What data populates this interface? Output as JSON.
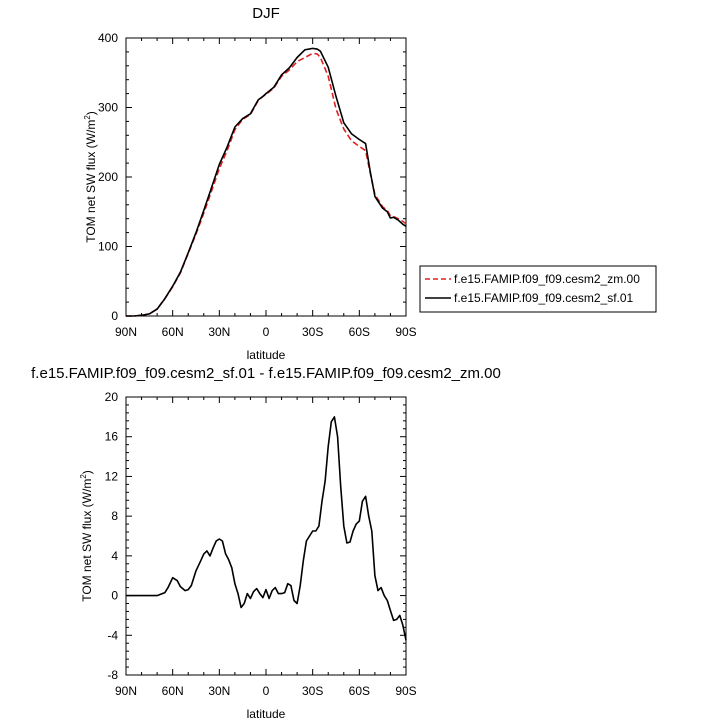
{
  "chart_data": [
    {
      "type": "line",
      "title": "DJF",
      "xlabel": "latitude",
      "ylabel": "TOM net SW flux (W/m",
      "ylabel_sup": "2",
      "ylabel_end": ")",
      "xlim": [
        90,
        -90
      ],
      "ylim": [
        0,
        400
      ],
      "xticks": [
        90,
        60,
        30,
        0,
        -30,
        -60,
        -90
      ],
      "xtick_labels": [
        "90N",
        "60N",
        "30N",
        "0",
        "30S",
        "60S",
        "90S"
      ],
      "yticks": [
        0,
        100,
        200,
        300,
        400
      ],
      "ytick_labels": [
        "0",
        "100",
        "200",
        "300",
        "400"
      ],
      "legend_position": "right",
      "series": [
        {
          "name": "f.e15.FAMIP.f09_f09.cesm2_zm.00",
          "color": "#e02020",
          "dash": "dashed",
          "x": [
            90,
            85,
            80,
            75,
            70,
            65,
            60,
            55,
            50,
            45,
            40,
            35,
            30,
            25,
            20,
            15,
            10,
            5,
            2,
            0,
            -5,
            -10,
            -15,
            -20,
            -25,
            -30,
            -33,
            -35,
            -40,
            -45,
            -50,
            -55,
            -60,
            -64,
            -67,
            -70,
            -75,
            -78,
            -80,
            -82,
            -85,
            -88,
            -90
          ],
          "y": [
            0,
            0,
            1,
            3,
            10,
            25,
            42,
            62,
            90,
            118,
            148,
            180,
            212,
            238,
            268,
            283,
            290,
            310,
            316,
            319,
            328,
            345,
            354,
            366,
            372,
            378,
            377,
            372,
            345,
            298,
            269,
            252,
            244,
            238,
            206,
            175,
            157,
            152,
            144,
            143,
            140,
            136,
            133
          ]
        },
        {
          "name": "f.e15.FAMIP.f09_f09.cesm2_sf.01",
          "color": "#000000",
          "dash": "solid",
          "x": [
            90,
            85,
            80,
            75,
            70,
            65,
            60,
            55,
            50,
            45,
            40,
            35,
            30,
            25,
            20,
            15,
            10,
            5,
            2,
            0,
            -5,
            -10,
            -15,
            -20,
            -25,
            -30,
            -33,
            -35,
            -40,
            -45,
            -50,
            -55,
            -60,
            -64,
            -67,
            -70,
            -75,
            -78,
            -80,
            -82,
            -85,
            -88,
            -90
          ],
          "y": [
            0,
            0,
            1,
            3,
            10,
            25,
            43,
            63,
            91,
            120,
            152,
            185,
            218,
            243,
            272,
            284,
            291,
            311,
            316,
            320,
            329,
            347,
            357,
            372,
            383,
            385,
            384,
            381,
            358,
            316,
            278,
            262,
            254,
            248,
            208,
            172,
            155,
            150,
            141,
            142,
            138,
            132,
            129
          ]
        }
      ]
    },
    {
      "type": "line",
      "title": "f.e15.FAMIP.f09_f09.cesm2_sf.01 - f.e15.FAMIP.f09_f09.cesm2_zm.00",
      "xlabel": "latitude",
      "ylabel": "TOM net SW flux (W/m",
      "ylabel_sup": "2",
      "ylabel_end": ")",
      "xlim": [
        90,
        -90
      ],
      "ylim": [
        -8,
        20
      ],
      "xticks": [
        90,
        60,
        30,
        0,
        -30,
        -60,
        -90
      ],
      "xtick_labels": [
        "90N",
        "60N",
        "30N",
        "0",
        "30S",
        "60S",
        "90S"
      ],
      "yticks": [
        -8,
        -4,
        0,
        4,
        8,
        12,
        16,
        20
      ],
      "ytick_labels": [
        "-8",
        "-4",
        "0",
        "4",
        "8",
        "12",
        "16",
        "20"
      ],
      "series": [
        {
          "color": "#000000",
          "dash": "solid",
          "x": [
            90,
            80,
            70,
            65,
            63,
            60,
            57,
            55,
            52,
            50,
            48,
            45,
            42,
            40,
            38,
            36,
            34,
            32,
            30,
            28,
            26,
            24,
            22,
            20,
            18,
            16,
            14,
            12,
            10,
            8,
            6,
            4,
            2,
            0,
            -2,
            -4,
            -6,
            -8,
            -10,
            -12,
            -14,
            -16,
            -18,
            -20,
            -22,
            -24,
            -26,
            -30,
            -32,
            -34,
            -36,
            -38,
            -40,
            -42,
            -44,
            -46,
            -48,
            -50,
            -52,
            -54,
            -56,
            -58,
            -60,
            -62,
            -64,
            -66,
            -68,
            -70,
            -72,
            -74,
            -76,
            -78,
            -80,
            -82,
            -84,
            -86,
            -88,
            -90
          ],
          "y": [
            0,
            0,
            0,
            0.3,
            0.8,
            1.8,
            1.5,
            0.9,
            0.5,
            0.6,
            1.0,
            2.5,
            3.5,
            4.2,
            4.5,
            4.0,
            4.8,
            5.5,
            5.7,
            5.5,
            4.2,
            3.6,
            2.8,
            1.2,
            0.2,
            -1.2,
            -0.8,
            0.2,
            -0.3,
            0.4,
            0.7,
            0.2,
            -0.2,
            0.6,
            -0.3,
            0.5,
            0.8,
            0.2,
            0.2,
            0.3,
            1.2,
            1.0,
            -0.5,
            -0.8,
            1.0,
            3.5,
            5.5,
            6.5,
            6.5,
            7.0,
            9.5,
            11.5,
            15.0,
            17.5,
            18.0,
            16.0,
            11.0,
            7.0,
            5.3,
            5.4,
            6.5,
            7.2,
            7.5,
            9.5,
            10.0,
            8.0,
            6.5,
            2.0,
            0.5,
            0.8,
            0.0,
            -0.5,
            -1.5,
            -2.5,
            -2.4,
            -2.0,
            -3.0,
            -4.5
          ]
        }
      ]
    }
  ]
}
